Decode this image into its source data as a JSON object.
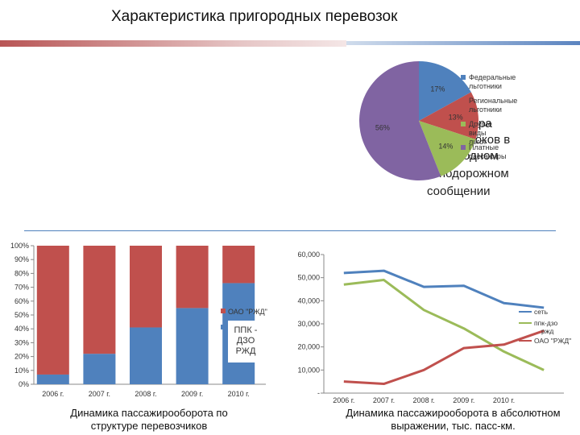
{
  "title": "Характеристика пригородных перевозок",
  "background_text": [
    "ра",
    "отоков в",
    "одном",
    "подорожном",
    "сообщении"
  ],
  "chart_data": [
    {
      "type": "pie",
      "labels": [
        "Федеральные льготники",
        "Региональные льготники",
        "Другие виды льгот",
        "Платные пассажиры"
      ],
      "values": [
        17,
        13,
        14,
        56
      ],
      "value_labels": [
        "17%",
        "13%",
        "14%",
        "56%"
      ],
      "colors": [
        "#4f81bd",
        "#c0504d",
        "#9bbb59",
        "#8064a2"
      ],
      "legend": "right"
    },
    {
      "type": "bar",
      "stacked": true,
      "categories": [
        "2006 г.",
        "2007 г.",
        "2008 г.",
        "2009 г.",
        "2010 г."
      ],
      "series": [
        {
          "name": "ППК - ДЗО РЖД",
          "values": [
            7,
            22,
            41,
            55,
            73
          ],
          "color": "#4f81bd"
        },
        {
          "name": "ОАО \"РЖД\"",
          "values": [
            93,
            78,
            59,
            45,
            27
          ],
          "color": "#c0504d"
        }
      ],
      "ylim": [
        0,
        100
      ],
      "yticks": [
        "0%",
        "10%",
        "20%",
        "30%",
        "40%",
        "50%",
        "60%",
        "70%",
        "80%",
        "90%",
        "100%"
      ],
      "caption": "Динамика пассажирооборота по структуре перевозчиков"
    },
    {
      "type": "line",
      "categories": [
        "2006 г.",
        "2007 г.",
        "2008 г.",
        "2009 г.",
        "2010 г.",
        ""
      ],
      "series": [
        {
          "name": "сеть",
          "values": [
            52000,
            53000,
            46000,
            46500,
            39000,
            37000
          ],
          "color": "#4f81bd"
        },
        {
          "name": "ппк-дзо ржд",
          "values": [
            47000,
            49000,
            36000,
            28000,
            18000,
            10000
          ],
          "color": "#9bbb59"
        },
        {
          "name": "ОАО \"РЖД\"",
          "values": [
            5000,
            4000,
            10000,
            19500,
            21000,
            27000
          ],
          "color": "#c0504d"
        }
      ],
      "ylim": [
        0,
        60000
      ],
      "yticks": [
        "-",
        "10,000",
        "20,000",
        "30,000",
        "40,000",
        "50,000",
        "60,000"
      ],
      "caption": "Динамика пассажирооборота в абсолютном выражении, тыс. пасс-км."
    }
  ]
}
